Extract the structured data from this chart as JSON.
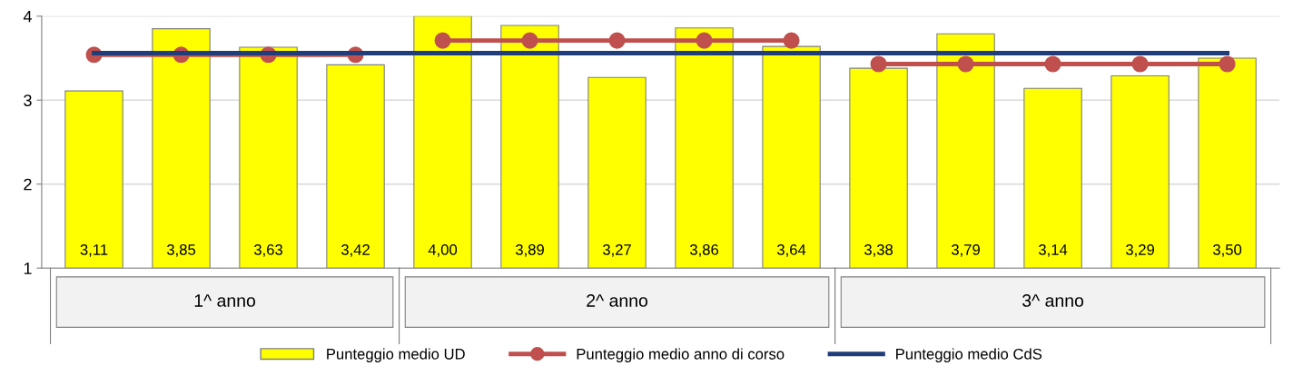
{
  "chart_data": {
    "type": "bar",
    "categories": [
      null,
      null,
      null,
      null,
      null,
      null,
      null,
      null,
      null,
      null,
      null,
      null,
      null,
      null
    ],
    "ylim": [
      1,
      4
    ],
    "yticks": [
      1,
      2,
      3,
      4
    ],
    "grid": "y",
    "legend": "bottom",
    "annotations": [
      "1^ anno",
      "2^ anno",
      "3^ anno"
    ],
    "series": [
      {
        "name": "Punteggio medio UD",
        "color": "#ffff00",
        "values": [
          3.11,
          3.85,
          3.63,
          3.42,
          4.0,
          3.89,
          3.27,
          3.86,
          3.64,
          3.38,
          3.79,
          3.14,
          3.29,
          3.5
        ],
        "value_labels": [
          "3,11",
          "3,85",
          "3,63",
          "3,42",
          "4,00",
          "3,89",
          "3,27",
          "3,86",
          "3,64",
          "3,38",
          "3,79",
          "3,14",
          "3,29",
          "3,50"
        ]
      },
      {
        "name": "Punteggio medio anno di corso",
        "type": "line",
        "color": "#c0504d",
        "marker": "circle",
        "values": [
          3.54,
          3.54,
          3.54,
          3.54,
          null,
          null,
          null,
          null,
          null,
          null,
          null,
          null,
          null,
          null
        ]
      },
      {
        "type": "line",
        "color": "#c0504d",
        "marker": "circle",
        "values": [
          null,
          null,
          null,
          null,
          3.71,
          3.71,
          3.71,
          3.71,
          3.71,
          null,
          null,
          null,
          null,
          null
        ]
      },
      {
        "type": "line",
        "color": "#c0504d",
        "marker": "circle",
        "values": [
          null,
          null,
          null,
          null,
          null,
          null,
          null,
          null,
          null,
          3.43,
          3.43,
          3.43,
          3.43,
          3.43
        ]
      },
      {
        "name": "Punteggio medio CdS",
        "type": "line",
        "color": "#1f3d7a",
        "marker": "none",
        "values": [
          3.56,
          3.56,
          3.56,
          3.56,
          3.56,
          3.56,
          3.56,
          3.56,
          3.56,
          3.56,
          3.56,
          3.56,
          3.56,
          3.56
        ]
      }
    ]
  }
}
